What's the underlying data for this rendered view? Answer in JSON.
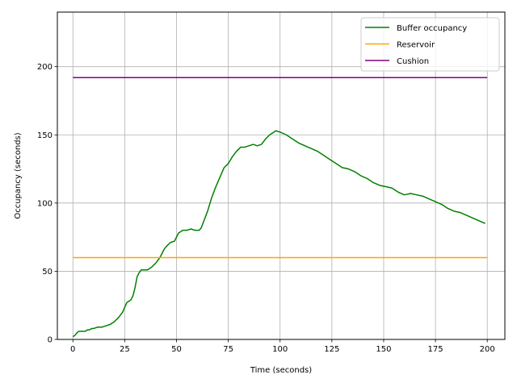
{
  "chart_data": {
    "type": "line",
    "title": "",
    "xlabel": "Time (seconds)",
    "ylabel": "Occupancy (seconds)",
    "xlim": [
      -7.5,
      208.5
    ],
    "ylim": [
      0,
      240
    ],
    "xticks": [
      0,
      25,
      50,
      75,
      100,
      125,
      150,
      175,
      200
    ],
    "yticks": [
      0,
      50,
      100,
      150,
      200
    ],
    "grid": true,
    "legend_position": "top-right",
    "series": [
      {
        "name": "Buffer occupancy",
        "color": "#008000",
        "x": [
          0,
          1,
          2,
          3,
          4,
          5,
          6,
          7,
          8,
          9,
          10,
          12,
          14,
          16,
          18,
          20,
          22,
          24,
          26,
          27,
          28,
          29,
          30,
          31,
          32,
          33,
          34,
          36,
          38,
          40,
          42,
          44,
          45,
          47,
          49,
          50,
          51,
          52,
          53,
          55,
          57,
          59,
          61,
          62,
          63,
          65,
          67,
          69,
          71,
          73,
          75,
          77,
          79,
          81,
          83,
          85,
          87,
          89,
          91,
          93,
          95,
          97,
          98,
          100,
          103,
          106,
          109,
          112,
          115,
          118,
          121,
          124,
          127,
          130,
          133,
          136,
          139,
          142,
          145,
          148,
          151,
          154,
          157,
          160,
          163,
          166,
          169,
          172,
          175,
          178,
          181,
          184,
          187,
          190,
          193,
          196,
          199
        ],
        "y": [
          2,
          3,
          5,
          6,
          6,
          6,
          6,
          7,
          7,
          8,
          8,
          9,
          9,
          10,
          11,
          13,
          16,
          20,
          27,
          28,
          29,
          32,
          38,
          46,
          49,
          51,
          51,
          51,
          53,
          56,
          60,
          66,
          68,
          71,
          72,
          75,
          78,
          79,
          80,
          80,
          81,
          80,
          80,
          82,
          86,
          94,
          104,
          112,
          119,
          126,
          129,
          134,
          138,
          141,
          141,
          142,
          143,
          142,
          143,
          147,
          150,
          152,
          153,
          152,
          150,
          147,
          144,
          142,
          140,
          138,
          135,
          132,
          129,
          126,
          125,
          123,
          120,
          118,
          115,
          113,
          112,
          111,
          108,
          106,
          107,
          106,
          105,
          103,
          101,
          99,
          96,
          94,
          93,
          91,
          89,
          87,
          85
        ]
      },
      {
        "name": "Reservoir",
        "color": "#FFA500",
        "x": [
          0,
          200
        ],
        "y": [
          60,
          60
        ]
      },
      {
        "name": "Cushion",
        "color": "#800080",
        "x": [
          0,
          200
        ],
        "y": [
          192,
          192
        ]
      }
    ]
  }
}
